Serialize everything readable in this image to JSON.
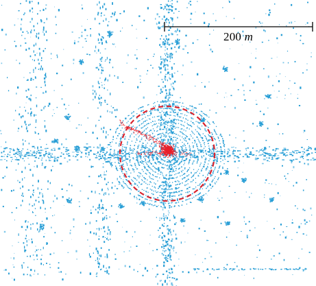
{
  "figure": {
    "scale_bar": {
      "value": "200",
      "unit": "m"
    }
  },
  "colors": {
    "point_cloud": "#2a9fd6",
    "point_cloud_light": "#7fc8ea",
    "local_points": "#e8202a",
    "range_circle": "#d9232d",
    "scale_bar": "#000000"
  }
}
